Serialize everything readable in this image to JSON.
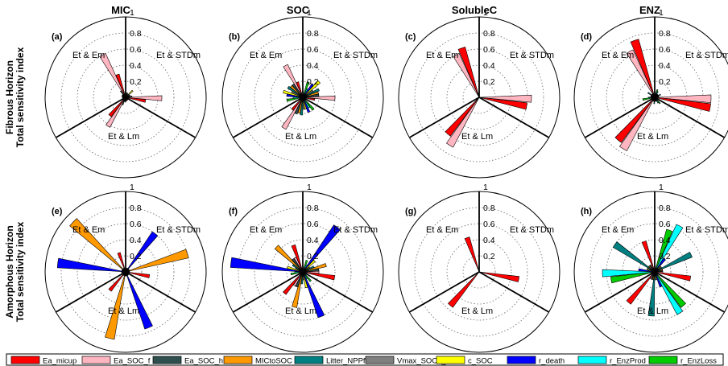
{
  "row_labels": [
    {
      "line1": "Fibrous Horizon",
      "line2": "Total sensitivity index"
    },
    {
      "line1": "Amorphous Horizon",
      "line2": "Total sensitivity index"
    }
  ],
  "column_titles": [
    "MIC",
    "SOC",
    "SolubleC",
    "ENZ"
  ],
  "panel_letters": [
    "(a)",
    "(b)",
    "(c)",
    "(d)",
    "(e)",
    "(f)",
    "(g)",
    "(h)"
  ],
  "sector_labels": [
    "Et & Em",
    "Et & STDm",
    "Et & Lm"
  ],
  "ring_tick_labels": [
    "0.2",
    "0.4",
    "0.6",
    "0.8",
    "1"
  ],
  "legend": [
    {
      "name": "Ea_micup",
      "color": "#ff0000"
    },
    {
      "name": "Ea_SOC_f",
      "color": "#ffb6c1"
    },
    {
      "name": "Ea_SOC_h",
      "color": "#2f4f4f"
    },
    {
      "name": "MICtoSOC",
      "color": "#ff9900"
    },
    {
      "name": "Litter_NPPfrac",
      "color": "#008080"
    },
    {
      "name": "Vmax_SOC0_f",
      "color": "#808080"
    },
    {
      "name": "c_SOC",
      "color": "#ffff00"
    },
    {
      "name": "r_death",
      "color": "#0000ff"
    },
    {
      "name": "r_EnzProd",
      "color": "#00ffff"
    },
    {
      "name": "r_EnzLoss",
      "color": "#00cc00"
    }
  ],
  "chart_data": [
    {
      "type": "polar-bar",
      "panel": "(a)",
      "title": "MIC",
      "rmax": 1,
      "sectors": [
        "Et & Em",
        "Et & STDm",
        "Et & Lm"
      ],
      "series": [
        {
          "name": "Ea_micup",
          "values": [
            0.3,
            0.25,
            0.3
          ]
        },
        {
          "name": "Ea_SOC_f",
          "values": [
            0.6,
            0.45,
            0.42
          ]
        },
        {
          "name": "Ea_SOC_h",
          "values": [
            0.1,
            0.08,
            0.1
          ]
        },
        {
          "name": "MICtoSOC",
          "values": [
            0.05,
            0.05,
            0.05
          ]
        },
        {
          "name": "Litter_NPPfrac",
          "values": [
            0.05,
            0.06,
            0.06
          ]
        },
        {
          "name": "Vmax_SOC0_f",
          "values": [
            0.04,
            0.04,
            0.04
          ]
        },
        {
          "name": "c_SOC",
          "values": [
            0.05,
            0.12,
            0.05
          ]
        },
        {
          "name": "r_death",
          "values": [
            0.03,
            0.03,
            0.03
          ]
        },
        {
          "name": "r_EnzProd",
          "values": [
            0.04,
            0.05,
            0.04
          ]
        },
        {
          "name": "r_EnzLoss",
          "values": [
            0.04,
            0.06,
            0.04
          ]
        }
      ]
    },
    {
      "type": "polar-bar",
      "panel": "(b)",
      "title": "SOC",
      "rmax": 1,
      "sectors": [
        "Et & Em",
        "Et & STDm",
        "Et & Lm"
      ],
      "series": [
        {
          "name": "Ea_micup",
          "values": [
            0.2,
            0.15,
            0.2
          ]
        },
        {
          "name": "Ea_SOC_f",
          "values": [
            0.45,
            0.4,
            0.45
          ]
        },
        {
          "name": "Ea_SOC_h",
          "values": [
            0.2,
            0.2,
            0.22
          ]
        },
        {
          "name": "MICtoSOC",
          "values": [
            0.2,
            0.2,
            0.2
          ]
        },
        {
          "name": "Litter_NPPfrac",
          "values": [
            0.22,
            0.22,
            0.22
          ]
        },
        {
          "name": "Vmax_SOC0_f",
          "values": [
            0.15,
            0.15,
            0.15
          ]
        },
        {
          "name": "c_SOC",
          "values": [
            0.25,
            0.28,
            0.15
          ]
        },
        {
          "name": "r_death",
          "values": [
            0.2,
            0.2,
            0.2
          ]
        },
        {
          "name": "r_EnzProd",
          "values": [
            0.12,
            0.12,
            0.15
          ]
        },
        {
          "name": "r_EnzLoss",
          "values": [
            0.2,
            0.2,
            0.2
          ]
        }
      ]
    },
    {
      "type": "polar-bar",
      "panel": "(c)",
      "title": "SolubleC",
      "rmax": 1,
      "sectors": [
        "Et & Em",
        "Et & STDm",
        "Et & Lm"
      ],
      "series": [
        {
          "name": "Ea_micup",
          "values": [
            0.65,
            0.6,
            0.6
          ]
        },
        {
          "name": "Ea_SOC_f",
          "values": [
            0.6,
            0.65,
            0.7
          ]
        },
        {
          "name": "Ea_SOC_h",
          "values": [
            0,
            0,
            0
          ]
        },
        {
          "name": "MICtoSOC",
          "values": [
            0,
            0,
            0
          ]
        },
        {
          "name": "Litter_NPPfrac",
          "values": [
            0,
            0,
            0
          ]
        },
        {
          "name": "Vmax_SOC0_f",
          "values": [
            0,
            0,
            0
          ]
        },
        {
          "name": "c_SOC",
          "values": [
            0,
            0,
            0
          ]
        },
        {
          "name": "r_death",
          "values": [
            0,
            0,
            0
          ]
        },
        {
          "name": "r_EnzProd",
          "values": [
            0,
            0,
            0
          ]
        },
        {
          "name": "r_EnzLoss",
          "values": [
            0,
            0,
            0
          ]
        }
      ]
    },
    {
      "type": "polar-bar",
      "panel": "(d)",
      "title": "ENZ",
      "rmax": 1,
      "sectors": [
        "Et & Em",
        "Et & STDm",
        "Et & Lm"
      ],
      "series": [
        {
          "name": "Ea_micup",
          "values": [
            0.75,
            0.7,
            0.7
          ]
        },
        {
          "name": "Ea_SOC_f",
          "values": [
            0.65,
            0.7,
            0.75
          ]
        },
        {
          "name": "Ea_SOC_h",
          "values": [
            0.05,
            0.05,
            0.05
          ]
        },
        {
          "name": "MICtoSOC",
          "values": [
            0.05,
            0.05,
            0.05
          ]
        },
        {
          "name": "Litter_NPPfrac",
          "values": [
            0.1,
            0.08,
            0.08
          ]
        },
        {
          "name": "Vmax_SOC0_f",
          "values": [
            0.05,
            0.05,
            0.05
          ]
        },
        {
          "name": "c_SOC",
          "values": [
            0.05,
            0.05,
            0.05
          ]
        },
        {
          "name": "r_death",
          "values": [
            0.05,
            0.05,
            0.05
          ]
        },
        {
          "name": "r_EnzProd",
          "values": [
            0.08,
            0.08,
            0.08
          ]
        },
        {
          "name": "r_EnzLoss",
          "values": [
            0.15,
            0.1,
            0.1
          ]
        }
      ]
    },
    {
      "type": "polar-bar",
      "panel": "(e)",
      "title": "MIC",
      "rmax": 1,
      "sectors": [
        "Et & Em",
        "Et & STDm",
        "Et & Lm"
      ],
      "series": [
        {
          "name": "Ea_micup",
          "values": [
            0.25,
            0.3,
            0.3
          ]
        },
        {
          "name": "Ea_SOC_f",
          "values": [
            0.05,
            0.05,
            0.05
          ]
        },
        {
          "name": "Ea_SOC_h",
          "values": [
            0.05,
            0.05,
            0.05
          ]
        },
        {
          "name": "MICtoSOC",
          "values": [
            0.9,
            0.8,
            0.85
          ]
        },
        {
          "name": "Litter_NPPfrac",
          "values": [
            0.05,
            0.05,
            0.05
          ]
        },
        {
          "name": "Vmax_SOC0_f",
          "values": [
            0.05,
            0.05,
            0.05
          ]
        },
        {
          "name": "c_SOC",
          "values": [
            0.05,
            0.05,
            0.05
          ]
        },
        {
          "name": "r_death",
          "values": [
            0.85,
            0.6,
            0.75
          ]
        },
        {
          "name": "r_EnzProd",
          "values": [
            0.05,
            0.05,
            0.05
          ]
        },
        {
          "name": "r_EnzLoss",
          "values": [
            0.05,
            0.05,
            0.05
          ]
        }
      ]
    },
    {
      "type": "polar-bar",
      "panel": "(f)",
      "title": "SOC",
      "rmax": 1,
      "sectors": [
        "Et & Em",
        "Et & STDm",
        "Et & Lm"
      ],
      "series": [
        {
          "name": "Ea_micup",
          "values": [
            0.35,
            0.4,
            0.35
          ]
        },
        {
          "name": "Ea_SOC_f",
          "values": [
            0.2,
            0.2,
            0.2
          ]
        },
        {
          "name": "Ea_SOC_h",
          "values": [
            0.2,
            0.2,
            0.2
          ]
        },
        {
          "name": "MICtoSOC",
          "values": [
            0.45,
            0.3,
            0.45
          ]
        },
        {
          "name": "Litter_NPPfrac",
          "values": [
            0.15,
            0.15,
            0.15
          ]
        },
        {
          "name": "Vmax_SOC0_f",
          "values": [
            0.1,
            0.1,
            0.1
          ]
        },
        {
          "name": "c_SOC",
          "values": [
            0.2,
            0.2,
            0.2
          ]
        },
        {
          "name": "r_death",
          "values": [
            0.9,
            0.7,
            0.6
          ]
        },
        {
          "name": "r_EnzProd",
          "values": [
            0.1,
            0.1,
            0.1
          ]
        },
        {
          "name": "r_EnzLoss",
          "values": [
            0.15,
            0.15,
            0.15
          ]
        }
      ]
    },
    {
      "type": "polar-bar",
      "panel": "(g)",
      "title": "SolubleC",
      "rmax": 1,
      "sectors": [
        "Et & Em",
        "Et & STDm",
        "Et & Lm"
      ],
      "series": [
        {
          "name": "Ea_micup",
          "values": [
            0.45,
            0.5,
            0.55
          ]
        },
        {
          "name": "Ea_SOC_f",
          "values": [
            0,
            0,
            0
          ]
        },
        {
          "name": "Ea_SOC_h",
          "values": [
            0,
            0,
            0
          ]
        },
        {
          "name": "MICtoSOC",
          "values": [
            0,
            0,
            0
          ]
        },
        {
          "name": "Litter_NPPfrac",
          "values": [
            0,
            0,
            0
          ]
        },
        {
          "name": "Vmax_SOC0_f",
          "values": [
            0,
            0,
            0
          ]
        },
        {
          "name": "c_SOC",
          "values": [
            0,
            0,
            0
          ]
        },
        {
          "name": "r_death",
          "values": [
            0,
            0,
            0
          ]
        },
        {
          "name": "r_EnzProd",
          "values": [
            0,
            0,
            0
          ]
        },
        {
          "name": "r_EnzLoss",
          "values": [
            0,
            0,
            0
          ]
        }
      ]
    },
    {
      "type": "polar-bar",
      "panel": "(h)",
      "title": "ENZ",
      "rmax": 1,
      "sectors": [
        "Et & Em",
        "Et & STDm",
        "Et & Lm"
      ],
      "series": [
        {
          "name": "Ea_micup",
          "values": [
            0.4,
            0.45,
            0.5
          ]
        },
        {
          "name": "Ea_SOC_f",
          "values": [
            0.1,
            0.1,
            0.1
          ]
        },
        {
          "name": "Ea_SOC_h",
          "values": [
            0.1,
            0.1,
            0.1
          ]
        },
        {
          "name": "MICtoSOC",
          "values": [
            0.1,
            0.1,
            0.1
          ]
        },
        {
          "name": "Litter_NPPfrac",
          "values": [
            0.6,
            0.5,
            0.55
          ]
        },
        {
          "name": "Vmax_SOC0_f",
          "values": [
            0.1,
            0.1,
            0.1
          ]
        },
        {
          "name": "c_SOC",
          "values": [
            0.1,
            0.1,
            0.1
          ]
        },
        {
          "name": "r_death",
          "values": [
            0.2,
            0.2,
            0.2
          ]
        },
        {
          "name": "r_EnzProd",
          "values": [
            0.65,
            0.65,
            0.6
          ]
        },
        {
          "name": "r_EnzLoss",
          "values": [
            0.55,
            0.55,
            0.55
          ]
        }
      ]
    }
  ]
}
